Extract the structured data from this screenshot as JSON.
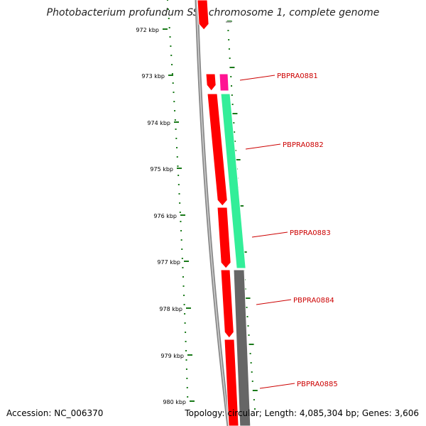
{
  "title": "Photobacterium profundum SS9 chromosome 1, complete genome",
  "accession": "Accession: NC_006370",
  "summary": "Topology: circular; Length: 4,085,304 bp; Genes: 3,606",
  "scale_ticks": [
    "972 kbp",
    "973 kbp",
    "974 kbp",
    "975 kbp",
    "976 kbp",
    "977 kbp",
    "978 kbp",
    "979 kbp",
    "980 kbp"
  ],
  "genes": [
    {
      "name": "PBPRA0881",
      "color": "#cc0000"
    },
    {
      "name": "PBPRA0882",
      "color": "#cc0000"
    },
    {
      "name": "PBPRA0883",
      "color": "#cc0000"
    },
    {
      "name": "PBPRA0884",
      "color": "#cc0000"
    },
    {
      "name": "PBPRA0885",
      "color": "#cc0000"
    }
  ],
  "colors": {
    "cds": "#ff0000",
    "trna": "#ff1493",
    "mrna": "#33ee99",
    "backbone": "#777777",
    "tick": "#1a7a1a",
    "label": "#cc0000"
  }
}
